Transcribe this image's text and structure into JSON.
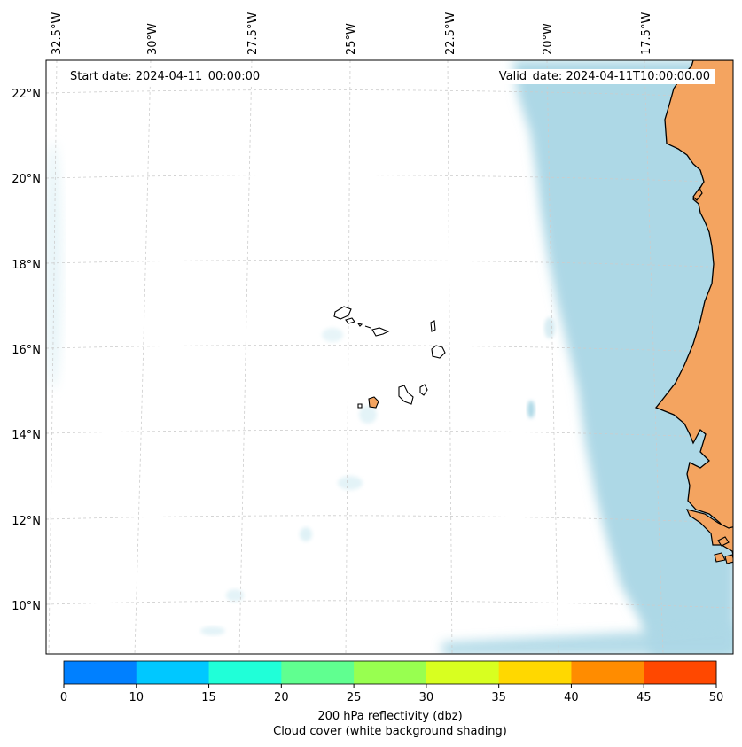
{
  "map": {
    "start_date": "Start date: 2024-04-11_00:00:00",
    "valid_date": "Valid_date: 2024-04-11T10:00:00.00",
    "lon_labels": [
      "32.5°W",
      "30°W",
      "27.5°W",
      "25°W",
      "22.5°W",
      "20°W",
      "17.5°W"
    ],
    "lat_labels": [
      "22°N",
      "20°N",
      "18°N",
      "16°N",
      "14°N",
      "12°N",
      "10°N"
    ],
    "colors": {
      "land": "#f4a460",
      "cloud": "#add8e6",
      "coastline": "#000000",
      "gridline": "#cccccc"
    }
  },
  "colorbar": {
    "title": "200 hPa reflectivity (dbz)",
    "subtitle": "Cloud cover (white background shading)",
    "ticks": [
      "0",
      "10",
      "15",
      "20",
      "25",
      "30",
      "35",
      "40",
      "45",
      "50"
    ],
    "colors": [
      "#0080ff",
      "#00c8ff",
      "#20ffd8",
      "#60ff90",
      "#98ff50",
      "#d8ff20",
      "#ffd800",
      "#ff8c00",
      "#ff4800"
    ]
  }
}
